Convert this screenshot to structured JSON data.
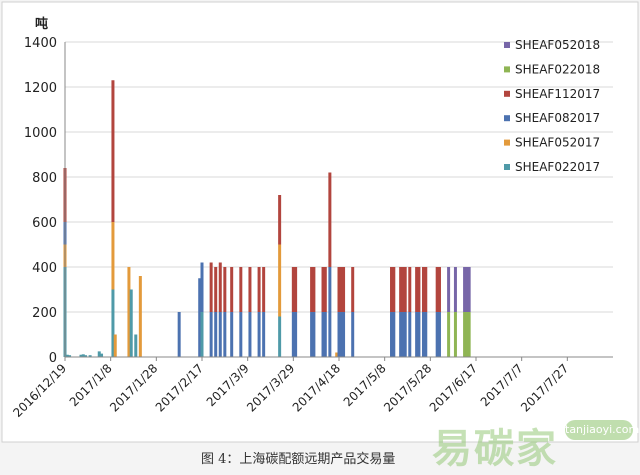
{
  "caption": "图 4：上海碳配额远期产品交易量",
  "watermark": {
    "text": "易碳家",
    "badge": "tanjiaoyi.com"
  },
  "colors": {
    "SHEAF052018": "#7766a8",
    "SHEAF022018": "#8fb554",
    "SHEAF112017": "#b2453e",
    "SHEAF082017": "#4c72b0",
    "SHEAF052017": "#e39a3b",
    "SHEAF022017": "#4f9aa8"
  },
  "chart_data": {
    "type": "bar",
    "stacked": true,
    "ylabel": "吨",
    "ylim": [
      0,
      1400
    ],
    "yticks": [
      0,
      200,
      400,
      600,
      800,
      1000,
      1200,
      1400
    ],
    "xlim": [
      "2016-12-19",
      "2017-08-16"
    ],
    "xtick_labels": [
      "2016/12/19",
      "2017/1/8",
      "2017/1/28",
      "2017/2/17",
      "2017/3/9",
      "2017/3/29",
      "2017/4/18",
      "2017/5/8",
      "2017/5/28",
      "2017/6/17",
      "2017/7/7",
      "2017/7/27"
    ],
    "legend_position": "top-right",
    "legend": [
      "SHEAF052018",
      "SHEAF022018",
      "SHEAF112017",
      "SHEAF082017",
      "SHEAF052017",
      "SHEAF022017"
    ],
    "series_order": [
      "SHEAF022017",
      "SHEAF052017",
      "SHEAF082017",
      "SHEAF112017",
      "SHEAF022018",
      "SHEAF052018"
    ],
    "bars": [
      {
        "date": "2016-12-19",
        "values": {
          "SHEAF022017": 400,
          "SHEAF052017": 100,
          "SHEAF082017": 100,
          "SHEAF112017": 240
        }
      },
      {
        "date": "2016-12-20",
        "values": {
          "SHEAF022017": 10
        }
      },
      {
        "date": "2016-12-21",
        "values": {
          "SHEAF022017": 8
        }
      },
      {
        "date": "2016-12-26",
        "values": {
          "SHEAF022017": 10
        }
      },
      {
        "date": "2016-12-27",
        "values": {
          "SHEAF022017": 12
        }
      },
      {
        "date": "2016-12-28",
        "values": {
          "SHEAF022017": 8
        }
      },
      {
        "date": "2016-12-30",
        "values": {
          "SHEAF022017": 8
        }
      },
      {
        "date": "2017-01-03",
        "values": {
          "SHEAF022017": 25
        }
      },
      {
        "date": "2017-01-04",
        "values": {
          "SHEAF022017": 15
        }
      },
      {
        "date": "2017-01-09",
        "values": {
          "SHEAF022017": 300,
          "SHEAF052017": 300,
          "SHEAF112017": 630
        }
      },
      {
        "date": "2017-01-10",
        "values": {
          "SHEAF052017": 100
        }
      },
      {
        "date": "2017-01-16",
        "values": {
          "SHEAF052017": 400
        }
      },
      {
        "date": "2017-01-17",
        "values": {
          "SHEAF022017": 300
        }
      },
      {
        "date": "2017-01-19",
        "values": {
          "SHEAF022017": 100
        }
      },
      {
        "date": "2017-01-21",
        "values": {
          "SHEAF052017": 360
        }
      },
      {
        "date": "2017-02-07",
        "values": {
          "SHEAF082017": 200
        }
      },
      {
        "date": "2017-02-16",
        "values": {
          "SHEAF082017": 350
        }
      },
      {
        "date": "2017-02-17",
        "values": {
          "SHEAF022017": 200,
          "SHEAF082017": 220
        }
      },
      {
        "date": "2017-02-21",
        "values": {
          "SHEAF082017": 200,
          "SHEAF112017": 220
        }
      },
      {
        "date": "2017-02-23",
        "values": {
          "SHEAF082017": 200,
          "SHEAF112017": 200
        }
      },
      {
        "date": "2017-02-25",
        "values": {
          "SHEAF082017": 200,
          "SHEAF112017": 220
        }
      },
      {
        "date": "2017-02-27",
        "values": {
          "SHEAF082017": 200,
          "SHEAF112017": 200
        }
      },
      {
        "date": "2017-03-02",
        "values": {
          "SHEAF082017": 200,
          "SHEAF112017": 200
        }
      },
      {
        "date": "2017-03-06",
        "values": {
          "SHEAF082017": 200,
          "SHEAF112017": 200
        }
      },
      {
        "date": "2017-03-10",
        "values": {
          "SHEAF082017": 200,
          "SHEAF112017": 200
        }
      },
      {
        "date": "2017-03-14",
        "values": {
          "SHEAF082017": 200,
          "SHEAF112017": 200
        }
      },
      {
        "date": "2017-03-16",
        "values": {
          "SHEAF082017": 200,
          "SHEAF112017": 200
        }
      },
      {
        "date": "2017-03-23",
        "values": {
          "SHEAF052017": 320,
          "SHEAF022017": 180,
          "SHEAF112017": 220
        }
      },
      {
        "date": "2017-03-29",
        "values": {
          "SHEAF082017": 200,
          "SHEAF112017": 200
        }
      },
      {
        "date": "2017-03-30",
        "values": {
          "SHEAF082017": 200,
          "SHEAF112017": 200
        }
      },
      {
        "date": "2017-04-06",
        "values": {
          "SHEAF082017": 200,
          "SHEAF112017": 200
        }
      },
      {
        "date": "2017-04-07",
        "values": {
          "SHEAF082017": 200,
          "SHEAF112017": 200
        }
      },
      {
        "date": "2017-04-11",
        "values": {
          "SHEAF082017": 200,
          "SHEAF112017": 200
        }
      },
      {
        "date": "2017-04-12",
        "values": {
          "SHEAF082017": 200,
          "SHEAF112017": 200
        }
      },
      {
        "date": "2017-04-14",
        "values": {
          "SHEAF082017": 400,
          "SHEAF112017": 420
        }
      },
      {
        "date": "2017-04-17",
        "values": {
          "SHEAF052017": 20
        }
      },
      {
        "date": "2017-04-18",
        "values": {
          "SHEAF082017": 200,
          "SHEAF112017": 200
        }
      },
      {
        "date": "2017-04-19",
        "values": {
          "SHEAF082017": 200,
          "SHEAF112017": 200
        }
      },
      {
        "date": "2017-04-20",
        "values": {
          "SHEAF082017": 200,
          "SHEAF112017": 200
        }
      },
      {
        "date": "2017-04-24",
        "values": {
          "SHEAF082017": 200,
          "SHEAF112017": 200
        }
      },
      {
        "date": "2017-05-11",
        "values": {
          "SHEAF082017": 200,
          "SHEAF112017": 200
        }
      },
      {
        "date": "2017-05-12",
        "values": {
          "SHEAF082017": 200,
          "SHEAF112017": 200
        }
      },
      {
        "date": "2017-05-15",
        "values": {
          "SHEAF082017": 200,
          "SHEAF112017": 200
        }
      },
      {
        "date": "2017-05-16",
        "values": {
          "SHEAF082017": 200,
          "SHEAF112017": 200
        }
      },
      {
        "date": "2017-05-17",
        "values": {
          "SHEAF082017": 200,
          "SHEAF112017": 200
        }
      },
      {
        "date": "2017-05-19",
        "values": {
          "SHEAF082017": 200,
          "SHEAF112017": 200
        }
      },
      {
        "date": "2017-05-22",
        "values": {
          "SHEAF082017": 200,
          "SHEAF112017": 200
        }
      },
      {
        "date": "2017-05-23",
        "values": {
          "SHEAF082017": 200,
          "SHEAF112017": 200
        }
      },
      {
        "date": "2017-05-25",
        "values": {
          "SHEAF082017": 200,
          "SHEAF112017": 200
        }
      },
      {
        "date": "2017-05-26",
        "values": {
          "SHEAF082017": 200,
          "SHEAF112017": 200
        }
      },
      {
        "date": "2017-05-31",
        "values": {
          "SHEAF082017": 200,
          "SHEAF112017": 200
        }
      },
      {
        "date": "2017-06-01",
        "values": {
          "SHEAF082017": 200,
          "SHEAF112017": 200
        }
      },
      {
        "date": "2017-06-05",
        "values": {
          "SHEAF022018": 200,
          "SHEAF052018": 200
        }
      },
      {
        "date": "2017-06-08",
        "values": {
          "SHEAF022018": 200,
          "SHEAF052018": 200
        }
      },
      {
        "date": "2017-06-12",
        "values": {
          "SHEAF022018": 200,
          "SHEAF052018": 200
        }
      },
      {
        "date": "2017-06-13",
        "values": {
          "SHEAF022018": 200,
          "SHEAF052018": 200
        }
      },
      {
        "date": "2017-06-14",
        "values": {
          "SHEAF022018": 200,
          "SHEAF052018": 200
        }
      }
    ]
  }
}
